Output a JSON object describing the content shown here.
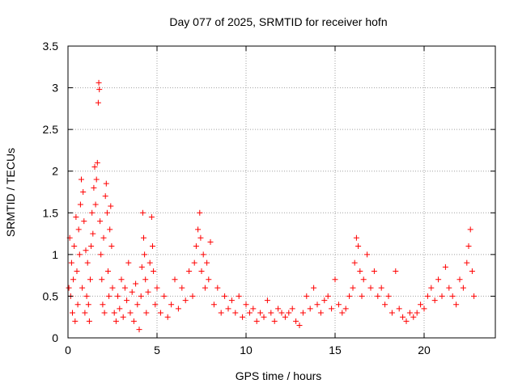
{
  "chart_data": {
    "type": "scatter",
    "title": "Day 077 of 2025, SRMTID for receiver hofn",
    "xlabel": "GPS time / hours",
    "ylabel": "SRMTID / TECUs",
    "xlim": [
      0,
      24
    ],
    "ylim": [
      0,
      3.5
    ],
    "xticks": [
      0,
      5,
      10,
      15,
      20
    ],
    "xtick_labels": [
      "0",
      "5",
      "10",
      "15",
      "20"
    ],
    "yticks": [
      0,
      0.5,
      1,
      1.5,
      2,
      2.5,
      3,
      3.5
    ],
    "ytick_labels": [
      "0",
      "0.5",
      "1",
      "1.5",
      "2",
      "2.5",
      "3",
      "3.5"
    ],
    "grid": true,
    "marker": "+",
    "color": "#ff0000",
    "series": [
      {
        "name": "SRMTID",
        "points": [
          [
            0.05,
            0.6
          ],
          [
            0.1,
            1.2
          ],
          [
            0.15,
            0.5
          ],
          [
            0.2,
            0.9
          ],
          [
            0.25,
            0.3
          ],
          [
            0.3,
            0.7
          ],
          [
            0.35,
            1.1
          ],
          [
            0.4,
            0.2
          ],
          [
            0.45,
            1.45
          ],
          [
            0.5,
            0.8
          ],
          [
            0.55,
            0.4
          ],
          [
            0.6,
            1.3
          ],
          [
            0.65,
            1.0
          ],
          [
            0.7,
            1.6
          ],
          [
            0.75,
            1.9
          ],
          [
            0.8,
            0.6
          ],
          [
            0.85,
            1.75
          ],
          [
            0.9,
            1.4
          ],
          [
            0.95,
            0.3
          ],
          [
            1.0,
            1.05
          ],
          [
            1.05,
            0.5
          ],
          [
            1.1,
            0.9
          ],
          [
            1.15,
            0.4
          ],
          [
            1.2,
            0.2
          ],
          [
            1.25,
            0.7
          ],
          [
            1.3,
            1.1
          ],
          [
            1.35,
            1.5
          ],
          [
            1.4,
            1.25
          ],
          [
            1.45,
            1.8
          ],
          [
            1.5,
            2.05
          ],
          [
            1.55,
            1.6
          ],
          [
            1.6,
            1.9
          ],
          [
            1.65,
            2.1
          ],
          [
            1.7,
            2.82
          ],
          [
            1.73,
            3.06
          ],
          [
            1.76,
            2.98
          ],
          [
            1.8,
            1.4
          ],
          [
            1.85,
            1.0
          ],
          [
            1.9,
            0.7
          ],
          [
            1.95,
            0.4
          ],
          [
            2.0,
            1.2
          ],
          [
            2.05,
            0.3
          ],
          [
            2.1,
            1.7
          ],
          [
            2.15,
            1.85
          ],
          [
            2.2,
            1.5
          ],
          [
            2.25,
            0.8
          ],
          [
            2.3,
            0.5
          ],
          [
            2.35,
            1.3
          ],
          [
            2.4,
            1.58
          ],
          [
            2.45,
            1.1
          ],
          [
            2.5,
            0.6
          ],
          [
            2.6,
            0.3
          ],
          [
            2.7,
            0.2
          ],
          [
            2.8,
            0.5
          ],
          [
            2.9,
            0.35
          ],
          [
            3.0,
            0.7
          ],
          [
            3.1,
            0.25
          ],
          [
            3.2,
            0.6
          ],
          [
            3.3,
            0.45
          ],
          [
            3.4,
            0.9
          ],
          [
            3.5,
            0.3
          ],
          [
            3.6,
            0.55
          ],
          [
            3.7,
            0.2
          ],
          [
            3.8,
            0.65
          ],
          [
            3.9,
            0.4
          ],
          [
            4.0,
            0.1
          ],
          [
            4.1,
            0.5
          ],
          [
            4.15,
            0.85
          ],
          [
            4.2,
            1.5
          ],
          [
            4.25,
            1.2
          ],
          [
            4.3,
            1.0
          ],
          [
            4.35,
            0.7
          ],
          [
            4.4,
            0.3
          ],
          [
            4.5,
            0.55
          ],
          [
            4.6,
            0.9
          ],
          [
            4.7,
            1.45
          ],
          [
            4.75,
            1.1
          ],
          [
            4.8,
            0.8
          ],
          [
            4.9,
            0.4
          ],
          [
            5.0,
            0.6
          ],
          [
            5.2,
            0.3
          ],
          [
            5.4,
            0.5
          ],
          [
            5.6,
            0.25
          ],
          [
            5.8,
            0.4
          ],
          [
            6.0,
            0.7
          ],
          [
            6.2,
            0.35
          ],
          [
            6.4,
            0.6
          ],
          [
            6.6,
            0.45
          ],
          [
            6.8,
            0.8
          ],
          [
            7.0,
            0.5
          ],
          [
            7.1,
            0.9
          ],
          [
            7.2,
            1.1
          ],
          [
            7.3,
            1.3
          ],
          [
            7.4,
            1.5
          ],
          [
            7.45,
            1.2
          ],
          [
            7.5,
            0.8
          ],
          [
            7.6,
            1.0
          ],
          [
            7.7,
            0.6
          ],
          [
            7.8,
            0.9
          ],
          [
            7.9,
            0.7
          ],
          [
            8.0,
            1.15
          ],
          [
            8.2,
            0.4
          ],
          [
            8.4,
            0.6
          ],
          [
            8.6,
            0.3
          ],
          [
            8.8,
            0.5
          ],
          [
            9.0,
            0.35
          ],
          [
            9.2,
            0.45
          ],
          [
            9.4,
            0.3
          ],
          [
            9.6,
            0.5
          ],
          [
            9.8,
            0.25
          ],
          [
            10.0,
            0.4
          ],
          [
            10.2,
            0.3
          ],
          [
            10.4,
            0.35
          ],
          [
            10.6,
            0.2
          ],
          [
            10.8,
            0.3
          ],
          [
            11.0,
            0.25
          ],
          [
            11.2,
            0.45
          ],
          [
            11.4,
            0.3
          ],
          [
            11.6,
            0.2
          ],
          [
            11.8,
            0.35
          ],
          [
            12.0,
            0.3
          ],
          [
            12.2,
            0.25
          ],
          [
            12.4,
            0.3
          ],
          [
            12.6,
            0.35
          ],
          [
            12.8,
            0.2
          ],
          [
            13.0,
            0.15
          ],
          [
            13.2,
            0.3
          ],
          [
            13.4,
            0.5
          ],
          [
            13.6,
            0.35
          ],
          [
            13.8,
            0.6
          ],
          [
            14.0,
            0.4
          ],
          [
            14.2,
            0.3
          ],
          [
            14.4,
            0.45
          ],
          [
            14.6,
            0.5
          ],
          [
            14.8,
            0.35
          ],
          [
            15.0,
            0.7
          ],
          [
            15.2,
            0.4
          ],
          [
            15.4,
            0.3
          ],
          [
            15.6,
            0.35
          ],
          [
            15.8,
            0.5
          ],
          [
            16.0,
            0.6
          ],
          [
            16.1,
            0.9
          ],
          [
            16.2,
            1.2
          ],
          [
            16.3,
            1.1
          ],
          [
            16.4,
            0.8
          ],
          [
            16.5,
            0.5
          ],
          [
            16.6,
            0.7
          ],
          [
            16.8,
            1.0
          ],
          [
            17.0,
            0.6
          ],
          [
            17.2,
            0.8
          ],
          [
            17.4,
            0.5
          ],
          [
            17.6,
            0.6
          ],
          [
            17.8,
            0.4
          ],
          [
            18.0,
            0.5
          ],
          [
            18.2,
            0.3
          ],
          [
            18.4,
            0.8
          ],
          [
            18.6,
            0.35
          ],
          [
            18.8,
            0.25
          ],
          [
            19.0,
            0.2
          ],
          [
            19.2,
            0.3
          ],
          [
            19.4,
            0.25
          ],
          [
            19.6,
            0.3
          ],
          [
            19.8,
            0.4
          ],
          [
            20.0,
            0.35
          ],
          [
            20.2,
            0.5
          ],
          [
            20.4,
            0.6
          ],
          [
            20.6,
            0.45
          ],
          [
            20.8,
            0.7
          ],
          [
            21.0,
            0.5
          ],
          [
            21.2,
            0.85
          ],
          [
            21.4,
            0.6
          ],
          [
            21.6,
            0.5
          ],
          [
            21.8,
            0.4
          ],
          [
            22.0,
            0.7
          ],
          [
            22.2,
            0.6
          ],
          [
            22.4,
            0.9
          ],
          [
            22.5,
            1.1
          ],
          [
            22.6,
            1.3
          ],
          [
            22.7,
            0.8
          ],
          [
            22.8,
            0.5
          ]
        ]
      }
    ]
  }
}
